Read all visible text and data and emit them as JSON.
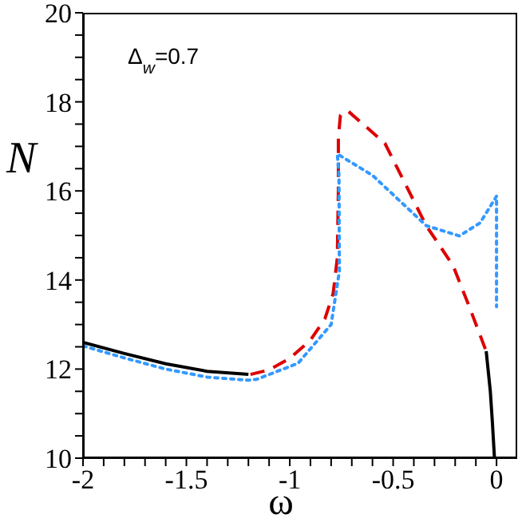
{
  "chart_data": {
    "type": "line",
    "xlabel": "ω",
    "ylabel": "N",
    "annotations": [
      "Δ$_{w}$=0.7"
    ],
    "series": [
      {
        "color": "#000000",
        "line_style": "solid",
        "x": [
          -2,
          -1.8,
          -1.6,
          -1.4,
          -1.2,
          null,
          -0.05,
          -0.03,
          -0.02,
          -0.01
        ],
        "values": [
          12.6,
          12.35,
          12.12,
          11.95,
          11.88,
          null,
          12.4,
          11.5,
          10.8,
          10
        ]
      },
      {
        "color": "#dd0000",
        "line_style": "dashed",
        "x": [
          -1.19,
          -1.1,
          -1.0,
          -0.9,
          -0.83,
          -0.79,
          -0.77,
          -0.765,
          -0.765,
          -0.755,
          -0.72,
          -0.54,
          -0.34,
          -0.21,
          -0.13,
          -0.05
        ],
        "values": [
          11.88,
          11.98,
          12.24,
          12.65,
          13.13,
          13.7,
          14.5,
          16,
          17.2,
          17.7,
          17.8,
          17.07,
          15.22,
          14.32,
          13.38,
          12.4
        ]
      },
      {
        "color": "#3399ff",
        "line_style": "dotted",
        "x": [
          -2,
          -1.8,
          -1.6,
          -1.4,
          -1.2,
          -1.16,
          -0.96,
          -0.8,
          -0.76,
          -0.762,
          -0.77,
          -0.6,
          -0.34,
          -0.18,
          -0.08,
          0,
          0
        ],
        "values": [
          12.52,
          12.25,
          12.0,
          11.82,
          11.75,
          11.77,
          12.13,
          13.0,
          14.2,
          16.35,
          16.83,
          16.35,
          15.22,
          14.99,
          15.28,
          15.88,
          13.4
        ]
      }
    ],
    "xlim": [
      -2,
      0.1
    ],
    "xticks": [
      -2,
      {
        "value": -1.9,
        "label": null
      },
      {
        "value": -1.8,
        "label": null
      },
      {
        "value": -1.7,
        "label": null
      },
      {
        "value": -1.6,
        "label": null
      },
      -1.5,
      {
        "value": -1.4,
        "label": null
      },
      {
        "value": -1.3,
        "label": null
      },
      {
        "value": -1.2,
        "label": null
      },
      {
        "value": -1.1,
        "label": null
      },
      -1,
      {
        "value": -0.9,
        "label": null
      },
      {
        "value": -0.8,
        "label": null
      },
      {
        "value": -0.7,
        "label": null
      },
      {
        "value": -0.6,
        "label": null
      },
      -0.5,
      {
        "value": -0.4,
        "label": null
      },
      {
        "value": -0.3,
        "label": null
      },
      {
        "value": -0.2,
        "label": null
      },
      {
        "value": -0.1,
        "label": null
      },
      0
    ],
    "ylim": [
      10,
      20
    ],
    "yticks": [
      10,
      {
        "value": 10.5,
        "label": null
      },
      {
        "value": 11,
        "label": null
      },
      {
        "value": 11.5,
        "label": null
      },
      12,
      {
        "value": 12.5,
        "label": null
      },
      {
        "value": 13,
        "label": null
      },
      {
        "value": 13.5,
        "label": null
      },
      14,
      {
        "value": 14.5,
        "label": null
      },
      {
        "value": 15,
        "label": null
      },
      {
        "value": 15.5,
        "label": null
      },
      16,
      {
        "value": 16.5,
        "label": null
      },
      {
        "value": 17,
        "label": null
      },
      {
        "value": 17.5,
        "label": null
      },
      18,
      {
        "value": 18.5,
        "label": null
      },
      {
        "value": 19,
        "label": null
      },
      {
        "value": 19.5,
        "label": null
      },
      20
    ],
    "marker": "none"
  }
}
